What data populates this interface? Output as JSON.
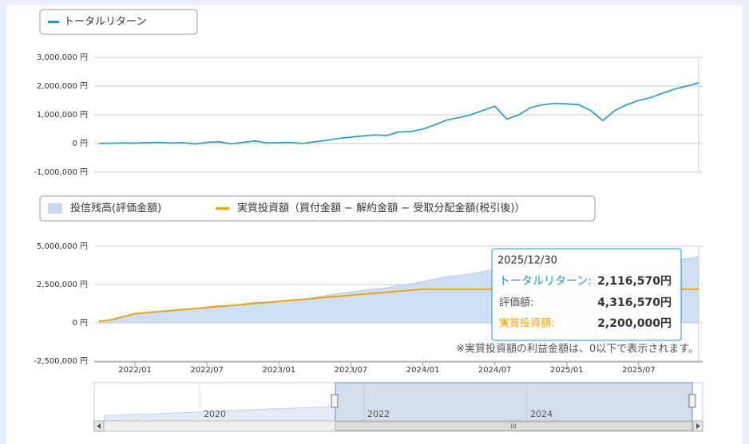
{
  "chart_data": [
    {
      "type": "line",
      "x": [
        "2021/10",
        "2021/11",
        "2021/12",
        "2022/01",
        "2022/02",
        "2022/03",
        "2022/04",
        "2022/05",
        "2022/06",
        "2022/07",
        "2022/08",
        "2022/09",
        "2022/10",
        "2022/11",
        "2022/12",
        "2023/01",
        "2023/02",
        "2023/03",
        "2023/04",
        "2023/05",
        "2023/06",
        "2023/07",
        "2023/08",
        "2023/09",
        "2023/10",
        "2023/11",
        "2023/12",
        "2024/01",
        "2024/02",
        "2024/03",
        "2024/04",
        "2024/05",
        "2024/06",
        "2024/07",
        "2024/08",
        "2024/09",
        "2024/10",
        "2024/11",
        "2024/12",
        "2025/01",
        "2025/02",
        "2025/03",
        "2025/04",
        "2025/05",
        "2025/06",
        "2025/07",
        "2025/08",
        "2025/09",
        "2025/10",
        "2025/11",
        "2025/12"
      ],
      "series": [
        {
          "name": "トータルリターン",
          "color": "#1a9bc9",
          "values": [
            0,
            10000,
            20000,
            10000,
            30000,
            40000,
            20000,
            30000,
            -20000,
            40000,
            60000,
            -10000,
            40000,
            90000,
            20000,
            30000,
            40000,
            0,
            60000,
            110000,
            180000,
            220000,
            260000,
            300000,
            280000,
            400000,
            420000,
            500000,
            650000,
            820000,
            900000,
            1000000,
            1150000,
            1300000,
            850000,
            1000000,
            1250000,
            1350000,
            1400000,
            1380000,
            1350000,
            1150000,
            800000,
            1150000,
            1350000,
            1500000,
            1600000,
            1750000,
            1900000,
            2000000,
            2116570
          ]
        }
      ],
      "ylim": [
        -1000000,
        3000000
      ],
      "yticks": [
        {
          "value": -1000000,
          "label": "-1,000,000 円"
        },
        {
          "value": 0,
          "label": "0 円"
        },
        {
          "value": 1000000,
          "label": "1,000,000 円"
        },
        {
          "value": 2000000,
          "label": "2,000,000 円"
        },
        {
          "value": 3000000,
          "label": "3,000,000 円"
        }
      ],
      "grid": true
    },
    {
      "type": "area-line",
      "x": [
        "2021/10",
        "2021/11",
        "2021/12",
        "2022/01",
        "2022/02",
        "2022/03",
        "2022/04",
        "2022/05",
        "2022/06",
        "2022/07",
        "2022/08",
        "2022/09",
        "2022/10",
        "2022/11",
        "2022/12",
        "2023/01",
        "2023/02",
        "2023/03",
        "2023/04",
        "2023/05",
        "2023/06",
        "2023/07",
        "2023/08",
        "2023/09",
        "2023/10",
        "2023/11",
        "2023/12",
        "2024/01",
        "2024/02",
        "2024/03",
        "2024/04",
        "2024/05",
        "2024/06",
        "2024/07",
        "2024/08",
        "2024/09",
        "2024/10",
        "2024/11",
        "2024/12",
        "2025/01",
        "2025/02",
        "2025/03",
        "2025/04",
        "2025/05",
        "2025/06",
        "2025/07",
        "2025/08",
        "2025/09",
        "2025/10",
        "2025/11",
        "2025/12"
      ],
      "xticks": [
        "2022/01",
        "2022/07",
        "2023/01",
        "2023/07",
        "2024/01",
        "2024/07",
        "2025/01",
        "2025/07"
      ],
      "series": [
        {
          "name": "投信残高(評価金額)",
          "color": "#c6d9f1",
          "values": [
            100000,
            210000,
            420000,
            610000,
            700000,
            770000,
            820000,
            900000,
            910000,
            1040000,
            1130000,
            1120000,
            1240000,
            1360000,
            1350000,
            1430000,
            1510000,
            1530000,
            1660000,
            1780000,
            1910000,
            2020000,
            2130000,
            2230000,
            2280000,
            2470000,
            2550000,
            2700000,
            2850000,
            3020000,
            3100000,
            3200000,
            3350000,
            3500000,
            3050000,
            3200000,
            3450000,
            3550000,
            3600000,
            3580000,
            3550000,
            3350000,
            3000000,
            3350000,
            3550000,
            3700000,
            3800000,
            3950000,
            4100000,
            4200000,
            4316570
          ]
        },
        {
          "name": "実質投資額（買付金額 − 解約金額 − 受取分配金額(税引後)）",
          "color": "#f0a30a",
          "values": [
            100000,
            200000,
            400000,
            600000,
            670000,
            730000,
            800000,
            870000,
            930000,
            1000000,
            1070000,
            1130000,
            1200000,
            1270000,
            1330000,
            1400000,
            1470000,
            1530000,
            1600000,
            1670000,
            1730000,
            1800000,
            1870000,
            1930000,
            2000000,
            2070000,
            2130000,
            2200000,
            2200000,
            2200000,
            2200000,
            2200000,
            2200000,
            2200000,
            2200000,
            2200000,
            2200000,
            2200000,
            2200000,
            2200000,
            2200000,
            2200000,
            2200000,
            2200000,
            2200000,
            2200000,
            2200000,
            2200000,
            2200000,
            2200000,
            2200000
          ]
        }
      ],
      "ylim": [
        -2500000,
        5000000
      ],
      "yticks": [
        {
          "value": -2500000,
          "label": "-2,500,000 円"
        },
        {
          "value": 0,
          "label": "0 円"
        },
        {
          "value": 2500000,
          "label": "2,500,000 円"
        },
        {
          "value": 5000000,
          "label": "5,000,000 円"
        }
      ],
      "grid": true,
      "note": "※実質投資額の利益金額は、0以下で表示されます。"
    }
  ],
  "tooltip": {
    "date": "2025/12/30",
    "rows": [
      {
        "label": "トータルリターン:",
        "value": "2,116,570円"
      },
      {
        "label": "評価額:",
        "value": "4,316,570円"
      },
      {
        "label": "実質投資額:",
        "value": "2,200,000円"
      }
    ]
  },
  "navigator": {
    "labels": [
      "2020",
      "2022",
      "2024"
    ],
    "scroll": "III"
  }
}
